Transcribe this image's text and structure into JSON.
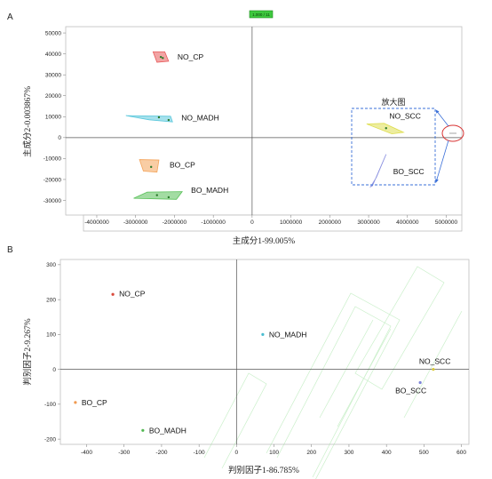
{
  "chart_data": [
    {
      "panel": "A",
      "type": "scatter",
      "xlabel": "主成分1-99.005%",
      "ylabel": "主成分2-0.003867%",
      "xlim": [
        -4800000,
        5400000
      ],
      "ylim": [
        -37000,
        53000
      ],
      "xticks": [
        "-4000000",
        "-3000000",
        "-2000000",
        "-1000000",
        "0",
        "1000000",
        "2000000",
        "3000000",
        "4000000",
        "5000000"
      ],
      "yticks": [
        "50000",
        "40000",
        "30000",
        "20000",
        "10000",
        "0",
        "-10000",
        "-20000",
        "-30000"
      ],
      "groups": [
        {
          "name": "NO_CP",
          "color": "#e85a5a",
          "hull": [
            [
              -2550000,
              41000
            ],
            [
              -2250000,
              41000
            ],
            [
              -2150000,
              36500
            ],
            [
              -2450000,
              36000
            ]
          ],
          "points": [
            [
              -2350000,
              38500
            ],
            [
              -2300000,
              38000
            ]
          ]
        },
        {
          "name": "NO_MADH",
          "color": "#5bc8dc",
          "hull": [
            [
              -3250000,
              10500
            ],
            [
              -2100000,
              10200
            ],
            [
              -2050000,
              7500
            ],
            [
              -2650000,
              8500
            ]
          ],
          "points": [
            [
              -2400000,
              9700
            ],
            [
              -2150000,
              8400
            ]
          ]
        },
        {
          "name": "BO_CP",
          "color": "#f4a45a",
          "hull": [
            [
              -2900000,
              -10500
            ],
            [
              -2400000,
              -10700
            ],
            [
              -2450000,
              -16500
            ],
            [
              -2800000,
              -16000
            ]
          ],
          "points": [
            [
              -2600000,
              -14000
            ]
          ]
        },
        {
          "name": "BO_MADH",
          "color": "#58c058",
          "hull": [
            [
              -3050000,
              -29000
            ],
            [
              -2700000,
              -26000
            ],
            [
              -1800000,
              -25800
            ],
            [
              -1950000,
              -29500
            ]
          ],
          "points": [
            [
              -2450000,
              -27500
            ],
            [
              -2150000,
              -28500
            ]
          ]
        },
        {
          "name": "NO_SCC",
          "color": "#dede50",
          "hull": [
            [
              2950000,
              6500
            ],
            [
              3400000,
              6800
            ],
            [
              3900000,
              2500
            ],
            [
              3600000,
              1800
            ]
          ],
          "points": [
            [
              3450000,
              4500
            ]
          ]
        },
        {
          "name": "BO_SCC",
          "color": "#8a90e0",
          "hull": [
            [
              3050000,
              -23500
            ],
            [
              3200000,
              -19000
            ],
            [
              3450000,
              -8000
            ],
            [
              3100000,
              -23000
            ]
          ],
          "points": []
        }
      ],
      "zoom_label": "放大图",
      "badge": "1.000 / 11"
    },
    {
      "panel": "B",
      "type": "scatter",
      "xlabel": "判别因子1-86.785%",
      "ylabel": "判别因子2-9.267%",
      "xlim": [
        -470,
        620
      ],
      "ylim": [
        -215,
        315
      ],
      "xticks": [
        "-400",
        "-300",
        "-200",
        "-100",
        "0",
        "100",
        "200",
        "300",
        "400",
        "500",
        "600"
      ],
      "yticks": [
        "300",
        "200",
        "100",
        "0",
        "-100",
        "-200"
      ],
      "points": [
        {
          "name": "NO_CP",
          "x": -330,
          "y": 215,
          "color": "#d94a3c"
        },
        {
          "name": "NO_MADH",
          "x": 70,
          "y": 100,
          "color": "#49bcd0"
        },
        {
          "name": "BO_CP",
          "x": -430,
          "y": -95,
          "color": "#f09a50"
        },
        {
          "name": "BO_MADH",
          "x": -250,
          "y": -175,
          "color": "#52b852"
        },
        {
          "name": "NO_SCC",
          "x": 525,
          "y": 0,
          "color": "#d8c83a"
        },
        {
          "name": "BO_SCC",
          "x": 490,
          "y": -38,
          "color": "#7f86d8"
        }
      ]
    }
  ]
}
